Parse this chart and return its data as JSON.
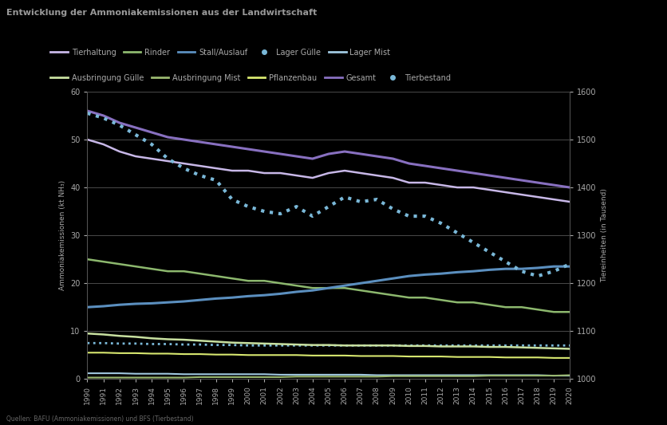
{
  "title": "Entwicklung der Ammoniakemissionen aus der Landwirtschaft",
  "source": "Quellen: BAFU (Ammoniakemissionen) und BFS (Tierbestand)",
  "years": [
    1990,
    1991,
    1992,
    1993,
    1994,
    1995,
    1996,
    1997,
    1998,
    1999,
    2000,
    2001,
    2002,
    2003,
    2004,
    2005,
    2006,
    2007,
    2008,
    2009,
    2010,
    2011,
    2012,
    2013,
    2014,
    2015,
    2016,
    2017,
    2018,
    2019,
    2020
  ],
  "ylabel_left": "Ammoniakemissionen (kt NH₃)",
  "ylabel_right": "Tiereinheiten (in Tausend)",
  "ylim_left": [
    0,
    60
  ],
  "ylim_right": [
    1000,
    1600
  ],
  "yticks_left": [
    0,
    10,
    20,
    30,
    40,
    50,
    60
  ],
  "yticks_right": [
    1000,
    1100,
    1200,
    1300,
    1400,
    1500,
    1600
  ],
  "series": {
    "Tierhaltung": {
      "color": "#c8b8e8",
      "style": "solid",
      "linewidth": 1.8,
      "axis": "left",
      "values": [
        50,
        49,
        47.5,
        46.5,
        46,
        45.5,
        45,
        44.5,
        44,
        43.5,
        43.5,
        43,
        43,
        42.5,
        42,
        43,
        43.5,
        43,
        42.5,
        42,
        41,
        41,
        40.5,
        40,
        40,
        39.5,
        39,
        38.5,
        38,
        37.5,
        37
      ]
    },
    "Rinder": {
      "color": "#8db86e",
      "style": "solid",
      "linewidth": 1.8,
      "axis": "left",
      "values": [
        25,
        24.5,
        24,
        23.5,
        23,
        22.5,
        22.5,
        22,
        21.5,
        21,
        20.5,
        20.5,
        20,
        19.5,
        19,
        19,
        19,
        18.5,
        18,
        17.5,
        17,
        17,
        16.5,
        16,
        16,
        15.5,
        15,
        15,
        14.5,
        14,
        14
      ]
    },
    "Stall/Auslauf": {
      "color": "#5b8fbf",
      "style": "solid",
      "linewidth": 2.2,
      "axis": "left",
      "values": [
        15,
        15.2,
        15.5,
        15.7,
        15.8,
        16,
        16.2,
        16.5,
        16.8,
        17,
        17.3,
        17.5,
        17.8,
        18.2,
        18.5,
        19,
        19.5,
        20,
        20.5,
        21,
        21.5,
        21.8,
        22,
        22.3,
        22.5,
        22.8,
        23,
        23,
        23.2,
        23.5,
        23.5
      ]
    },
    "Lager Gülle": {
      "color": "#7ab8d8",
      "style": "dotted",
      "linewidth": 2.0,
      "axis": "left",
      "values": [
        7.5,
        7.5,
        7.4,
        7.4,
        7.3,
        7.3,
        7.2,
        7.2,
        7.1,
        7.1,
        7.0,
        7.0,
        7.0,
        7.0,
        7.0,
        7.0,
        7.0,
        7.0,
        7.0,
        7.0,
        7.0,
        7.0,
        7.0,
        7.0,
        7.0,
        7.0,
        7.0,
        7.0,
        7.0,
        7.0,
        7.0
      ]
    },
    "Lager Mist": {
      "color": "#a0c8e0",
      "style": "solid",
      "linewidth": 1.5,
      "axis": "left",
      "values": [
        1.2,
        1.2,
        1.2,
        1.1,
        1.1,
        1.1,
        1.0,
        1.0,
        1.0,
        1.0,
        1.0,
        1.0,
        0.9,
        0.9,
        0.9,
        0.9,
        0.9,
        0.9,
        0.8,
        0.8,
        0.8,
        0.8,
        0.8,
        0.8,
        0.8,
        0.8,
        0.8,
        0.8,
        0.8,
        0.7,
        0.7
      ]
    },
    "Ausbringung Gülle": {
      "color": "#c8e0a0",
      "style": "solid",
      "linewidth": 1.8,
      "axis": "left",
      "values": [
        9.5,
        9.3,
        9.0,
        8.8,
        8.5,
        8.3,
        8.2,
        8.0,
        7.8,
        7.6,
        7.5,
        7.4,
        7.3,
        7.2,
        7.1,
        7.1,
        7.0,
        7.0,
        7.0,
        7.0,
        6.9,
        6.9,
        6.8,
        6.8,
        6.8,
        6.7,
        6.7,
        6.6,
        6.5,
        6.4,
        6.3
      ]
    },
    "Ausbringung Mist": {
      "color": "#9ab870",
      "style": "solid",
      "linewidth": 1.5,
      "axis": "left",
      "values": [
        0.3,
        0.3,
        0.3,
        0.3,
        0.3,
        0.3,
        0.3,
        0.4,
        0.4,
        0.4,
        0.4,
        0.4,
        0.4,
        0.5,
        0.5,
        0.5,
        0.5,
        0.5,
        0.5,
        0.6,
        0.6,
        0.6,
        0.6,
        0.6,
        0.6,
        0.7,
        0.7,
        0.7,
        0.7,
        0.7,
        0.8
      ]
    },
    "Pflanzenbau": {
      "color": "#d8e870",
      "style": "solid",
      "linewidth": 1.5,
      "axis": "left",
      "values": [
        5.5,
        5.5,
        5.4,
        5.4,
        5.3,
        5.3,
        5.2,
        5.2,
        5.1,
        5.1,
        5.0,
        5.0,
        5.0,
        5.0,
        4.9,
        4.9,
        4.9,
        4.8,
        4.8,
        4.8,
        4.7,
        4.7,
        4.7,
        4.6,
        4.6,
        4.6,
        4.5,
        4.5,
        4.5,
        4.4,
        4.4
      ]
    },
    "Gesamt": {
      "color": "#8870c0",
      "style": "solid",
      "linewidth": 2.2,
      "axis": "left",
      "values": [
        56,
        55,
        53.5,
        52.5,
        51.5,
        50.5,
        50,
        49.5,
        49,
        48.5,
        48,
        47.5,
        47,
        46.5,
        46,
        47,
        47.5,
        47,
        46.5,
        46,
        45,
        44.5,
        44,
        43.5,
        43,
        42.5,
        42,
        41.5,
        41,
        40.5,
        40
      ]
    },
    "Tierbestand": {
      "color": "#7ab8d8",
      "style": "dotted",
      "linewidth": 3.0,
      "axis": "right",
      "values": [
        1555,
        1545,
        1530,
        1510,
        1490,
        1460,
        1440,
        1425,
        1415,
        1375,
        1360,
        1350,
        1345,
        1360,
        1340,
        1360,
        1380,
        1370,
        1375,
        1355,
        1340,
        1340,
        1325,
        1305,
        1285,
        1265,
        1245,
        1225,
        1215,
        1225,
        1240
      ]
    }
  },
  "legend": [
    {
      "label": "Tierhaltung",
      "color": "#c8b8e8",
      "style": "solid"
    },
    {
      "label": "Rinder",
      "color": "#8db86e",
      "style": "solid"
    },
    {
      "label": "Stall/Auslauf",
      "color": "#5b8fbf",
      "style": "solid"
    },
    {
      "label": "Lager Gülle",
      "color": "#7ab8d8",
      "style": "dotted"
    },
    {
      "label": "Lager Mist",
      "color": "#a0c8e0",
      "style": "solid"
    },
    {
      "label": "Ausbringung Gülle",
      "color": "#c8e0a0",
      "style": "solid"
    },
    {
      "label": "Ausbringung Mist",
      "color": "#9ab870",
      "style": "solid"
    },
    {
      "label": "Pflanzenbau",
      "color": "#d8e870",
      "style": "solid"
    },
    {
      "label": "Gesamt",
      "color": "#8870c0",
      "style": "solid"
    },
    {
      "label": "Tierbestand",
      "color": "#7ab8d8",
      "style": "dotted"
    }
  ],
  "bg_color": "#000000",
  "plot_bg_color": "#000000",
  "text_color": "#aaaaaa",
  "grid_color": "#555555",
  "title_color": "#999999"
}
